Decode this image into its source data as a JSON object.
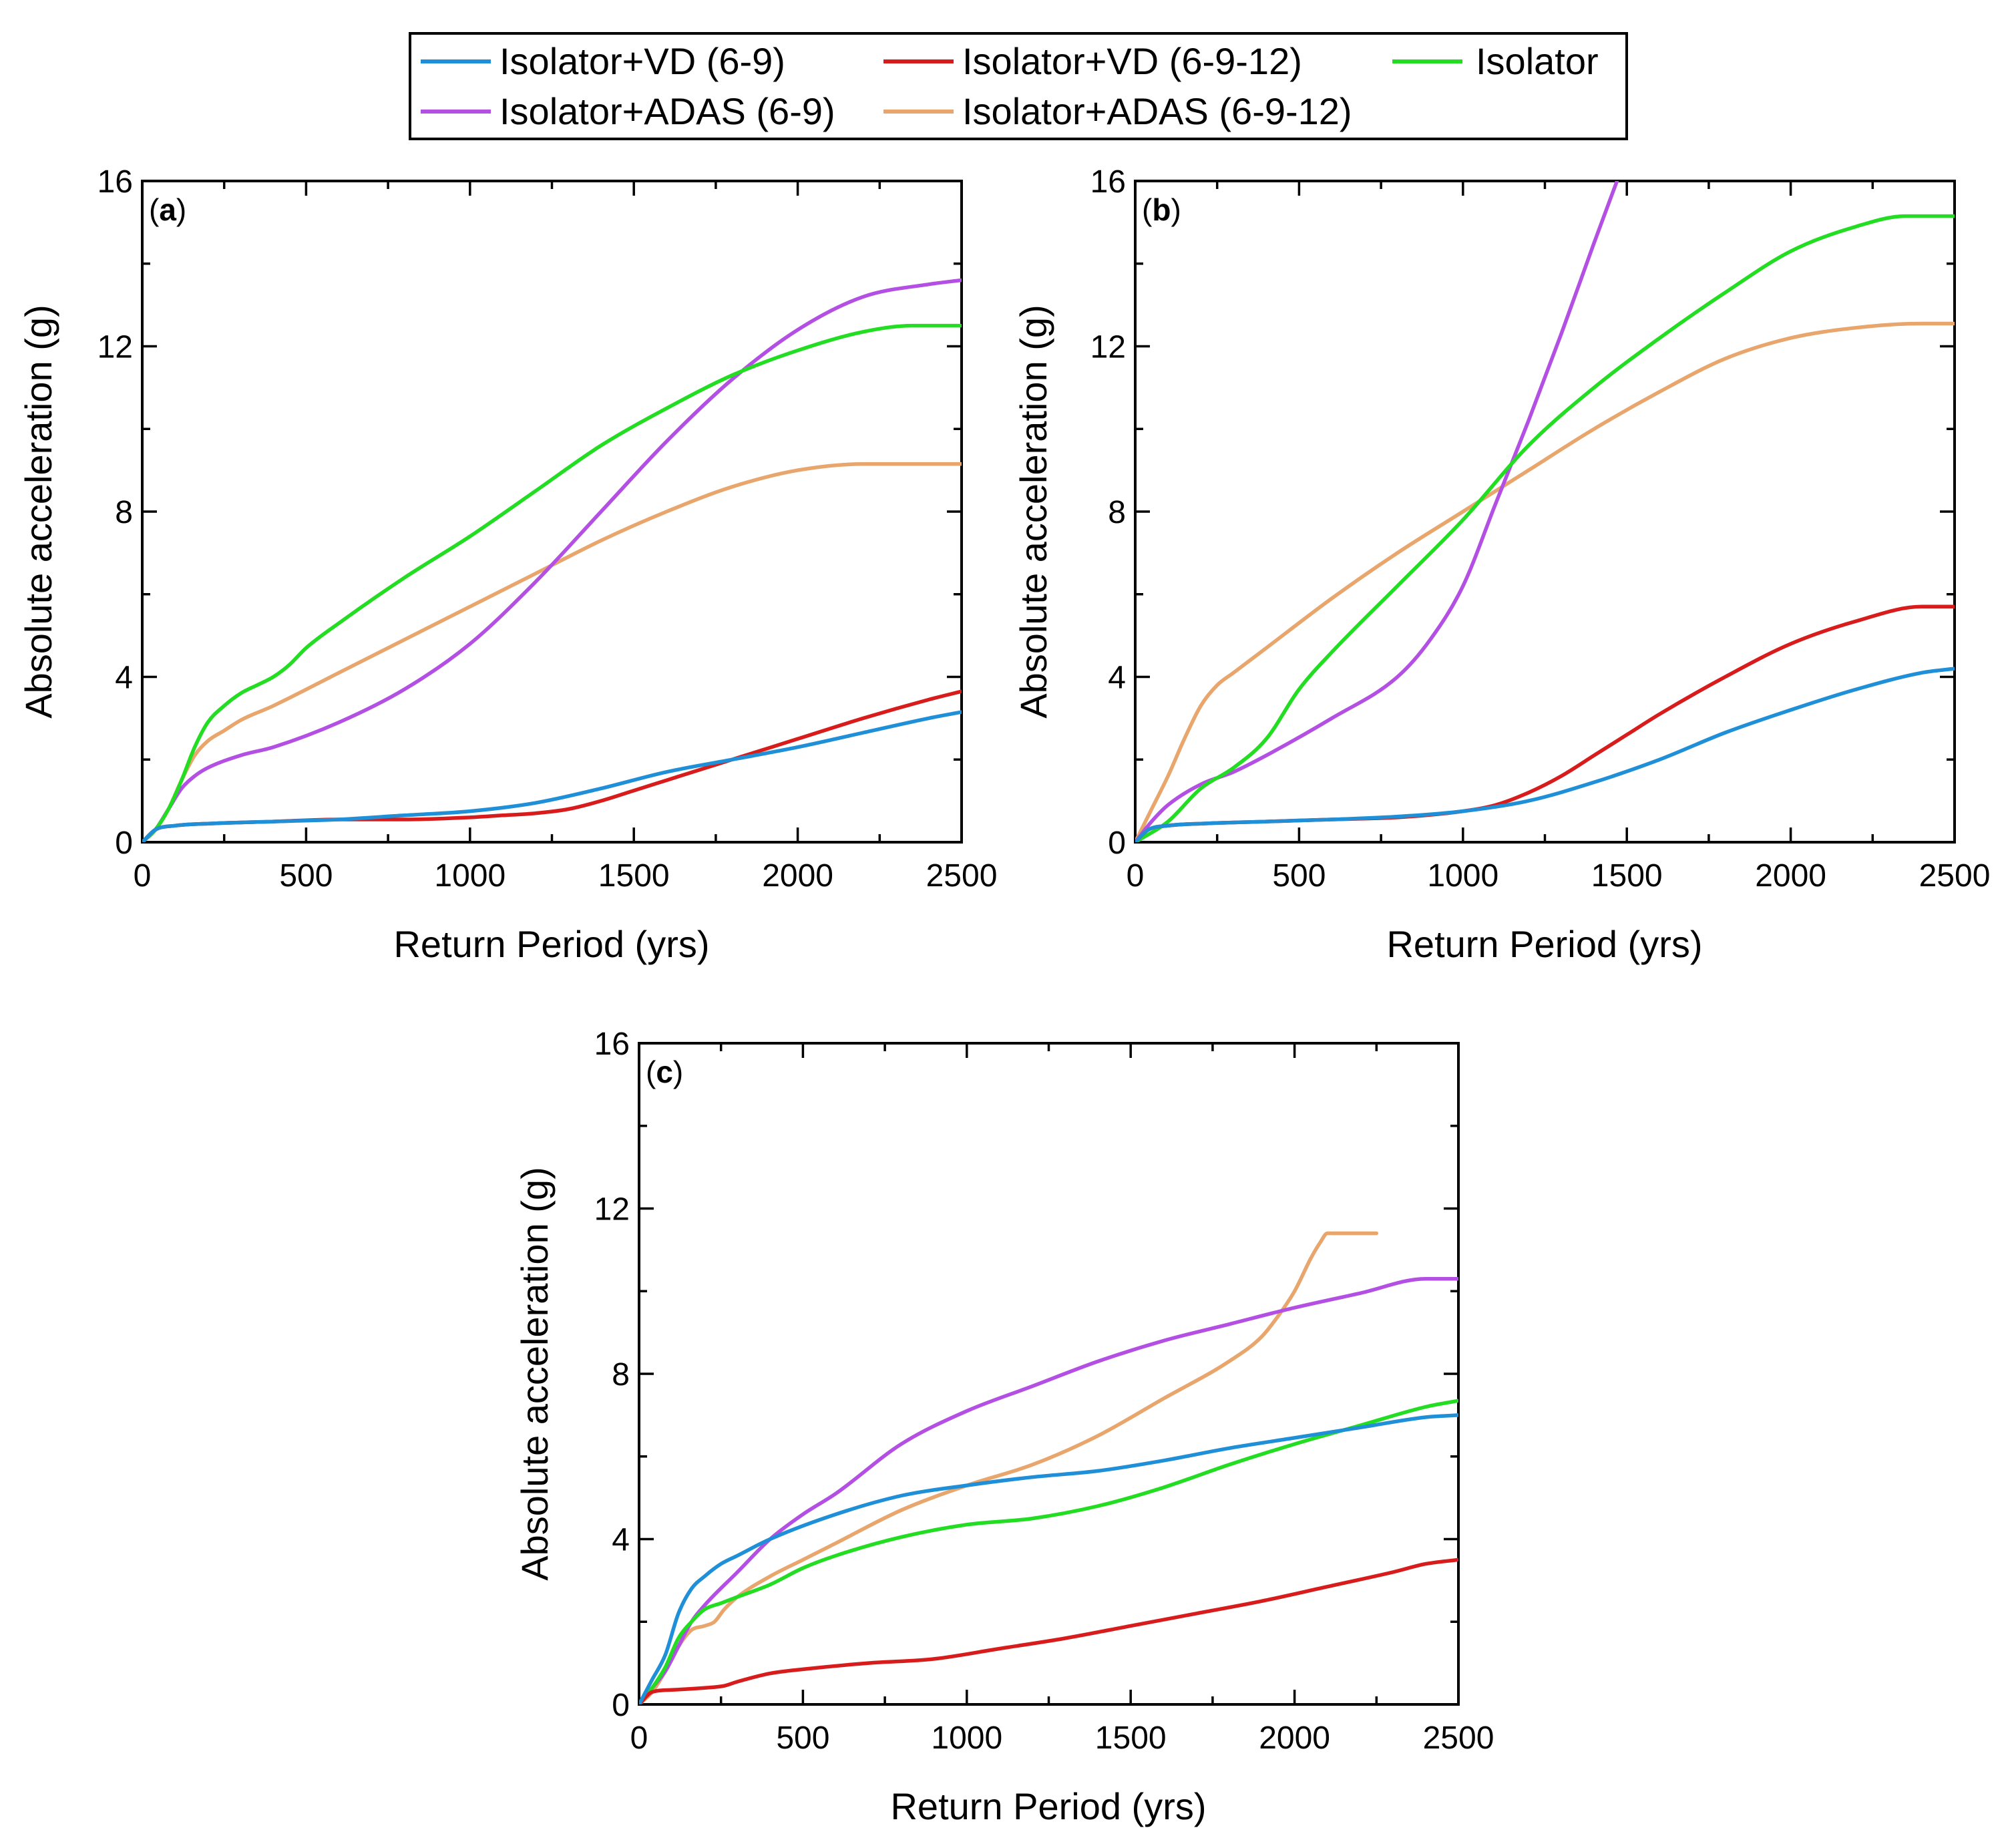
{
  "legend": {
    "entries": [
      {
        "key": "vd69",
        "label": "Isolator+VD (6-9)",
        "color": "#1f8fd8"
      },
      {
        "key": "vd6912",
        "label": "Isolator+VD (6-9-12)",
        "color": "#d81c1c"
      },
      {
        "key": "iso",
        "label": "Isolator",
        "color": "#22dd22"
      },
      {
        "key": "adas69",
        "label": "Isolator+ADAS (6-9)",
        "color": "#b34fe3"
      },
      {
        "key": "adas6912",
        "label": "Isolator+ADAS (6-9-12)",
        "color": "#e8a56c"
      }
    ]
  },
  "chart_data": [
    {
      "type": "line",
      "panel": "a",
      "panel_label": "a",
      "xlabel": "Return Period (yrs)",
      "ylabel": "Absolute acceleration (g)",
      "xlim": [
        0,
        2500
      ],
      "ylim": [
        0,
        16
      ],
      "xticks": [
        0,
        500,
        1000,
        1500,
        2000,
        2500
      ],
      "yticks": [
        0,
        4,
        8,
        12,
        16
      ],
      "series": [
        {
          "key": "vd69",
          "name": "Isolator+VD (6-9)",
          "x": [
            0,
            40,
            100,
            200,
            400,
            600,
            800,
            1000,
            1200,
            1400,
            1600,
            1800,
            2000,
            2200,
            2400,
            2500
          ],
          "y": [
            0,
            0.3,
            0.4,
            0.45,
            0.5,
            0.55,
            0.65,
            0.75,
            0.95,
            1.3,
            1.7,
            2.0,
            2.3,
            2.65,
            3.0,
            3.15
          ]
        },
        {
          "key": "vd6912",
          "name": "Isolator+VD (6-9-12)",
          "x": [
            0,
            40,
            100,
            200,
            400,
            600,
            800,
            1000,
            1100,
            1200,
            1300,
            1400,
            1500,
            1600,
            1800,
            2000,
            2200,
            2400,
            2500
          ],
          "y": [
            0,
            0.3,
            0.4,
            0.45,
            0.5,
            0.55,
            0.55,
            0.6,
            0.65,
            0.7,
            0.8,
            1.0,
            1.25,
            1.5,
            2.0,
            2.5,
            3.0,
            3.45,
            3.65
          ]
        },
        {
          "key": "iso",
          "name": "Isolator",
          "x": [
            0,
            40,
            80,
            120,
            160,
            200,
            250,
            300,
            350,
            400,
            450,
            500,
            600,
            800,
            1000,
            1200,
            1400,
            1600,
            1800,
            2000,
            2200,
            2350,
            2500
          ],
          "y": [
            0,
            0.3,
            0.8,
            1.5,
            2.3,
            2.9,
            3.3,
            3.6,
            3.8,
            4.0,
            4.3,
            4.7,
            5.3,
            6.4,
            7.4,
            8.5,
            9.6,
            10.5,
            11.3,
            11.9,
            12.35,
            12.5,
            12.5
          ]
        },
        {
          "key": "adas69",
          "name": "Isolator+ADAS (6-9)",
          "x": [
            0,
            40,
            80,
            120,
            160,
            200,
            300,
            400,
            600,
            800,
            1000,
            1200,
            1400,
            1600,
            1800,
            2000,
            2200,
            2400,
            2500
          ],
          "y": [
            0,
            0.3,
            0.8,
            1.3,
            1.6,
            1.8,
            2.1,
            2.3,
            2.9,
            3.7,
            4.8,
            6.3,
            8.0,
            9.7,
            11.2,
            12.4,
            13.2,
            13.5,
            13.6
          ]
        },
        {
          "key": "adas6912",
          "name": "Isolator+ADAS (6-9-12)",
          "x": [
            0,
            40,
            80,
            120,
            160,
            200,
            250,
            300,
            400,
            600,
            800,
            1000,
            1200,
            1400,
            1600,
            1800,
            2000,
            2200,
            2400,
            2500
          ],
          "y": [
            0,
            0.3,
            0.8,
            1.5,
            2.1,
            2.45,
            2.7,
            2.95,
            3.3,
            4.1,
            4.9,
            5.7,
            6.5,
            7.3,
            8.0,
            8.6,
            9.0,
            9.15,
            9.15,
            9.15
          ]
        }
      ]
    },
    {
      "type": "line",
      "panel": "b",
      "panel_label": "b",
      "xlabel": "Return Period (yrs)",
      "ylabel": "Absolute acceleration (g)",
      "xlim": [
        0,
        2500
      ],
      "ylim": [
        0,
        16
      ],
      "xticks": [
        0,
        500,
        1000,
        1500,
        2000,
        2500
      ],
      "yticks": [
        0,
        4,
        8,
        12,
        16
      ],
      "series": [
        {
          "key": "vd69",
          "name": "Isolator+VD (6-9)",
          "x": [
            0,
            40,
            100,
            200,
            400,
            600,
            800,
            1000,
            1200,
            1400,
            1600,
            1800,
            2000,
            2200,
            2400,
            2500
          ],
          "y": [
            0,
            0.3,
            0.4,
            0.45,
            0.5,
            0.55,
            0.62,
            0.75,
            1.0,
            1.45,
            2.0,
            2.65,
            3.2,
            3.7,
            4.1,
            4.2
          ]
        },
        {
          "key": "vd6912",
          "name": "Isolator+VD (6-9-12)",
          "x": [
            0,
            40,
            100,
            200,
            400,
            600,
            800,
            1000,
            1100,
            1200,
            1300,
            1400,
            1500,
            1600,
            1800,
            2000,
            2200,
            2400,
            2500
          ],
          "y": [
            0,
            0.3,
            0.4,
            0.45,
            0.5,
            0.55,
            0.6,
            0.75,
            0.9,
            1.2,
            1.6,
            2.1,
            2.6,
            3.1,
            4.0,
            4.8,
            5.35,
            5.7,
            5.7
          ]
        },
        {
          "key": "iso",
          "name": "Isolator",
          "x": [
            0,
            100,
            200,
            300,
            400,
            500,
            600,
            800,
            1000,
            1200,
            1400,
            1600,
            1800,
            2000,
            2200,
            2350,
            2500
          ],
          "y": [
            0,
            0.5,
            1.3,
            1.8,
            2.5,
            3.7,
            4.6,
            6.2,
            7.8,
            9.6,
            11.0,
            12.2,
            13.3,
            14.3,
            14.9,
            15.15,
            15.15
          ]
        },
        {
          "key": "adas69",
          "name": "Isolator+ADAS (6-9)",
          "x": [
            0,
            50,
            100,
            200,
            300,
            400,
            600,
            800,
            900,
            1000,
            1100,
            1200,
            1300,
            1400,
            1470
          ],
          "y": [
            0,
            0.5,
            0.9,
            1.4,
            1.7,
            2.1,
            3.0,
            4.0,
            4.9,
            6.2,
            8.2,
            10.2,
            12.3,
            14.5,
            16.0
          ]
        },
        {
          "key": "adas6912",
          "name": "Isolator+ADAS (6-9-12)",
          "x": [
            0,
            50,
            100,
            150,
            200,
            250,
            300,
            400,
            600,
            800,
            1000,
            1200,
            1400,
            1600,
            1800,
            2000,
            2200,
            2400,
            2500
          ],
          "y": [
            0,
            0.8,
            1.6,
            2.5,
            3.3,
            3.8,
            4.1,
            4.7,
            5.9,
            7.0,
            8.0,
            9.0,
            10.0,
            10.9,
            11.7,
            12.2,
            12.45,
            12.55,
            12.55
          ]
        }
      ]
    },
    {
      "type": "line",
      "panel": "c",
      "panel_label": "c",
      "xlabel": "Return Period (yrs)",
      "ylabel": "Absolute acceleration (g)",
      "xlim": [
        0,
        2500
      ],
      "ylim": [
        0,
        16
      ],
      "xticks": [
        0,
        500,
        1000,
        1500,
        2000,
        2500
      ],
      "yticks": [
        0,
        4,
        8,
        12,
        16
      ],
      "series": [
        {
          "key": "vd69",
          "name": "Isolator+VD (6-9)",
          "x": [
            0,
            40,
            80,
            120,
            160,
            200,
            250,
            300,
            400,
            600,
            800,
            1000,
            1200,
            1400,
            1600,
            1800,
            2000,
            2200,
            2400,
            2500
          ],
          "y": [
            0,
            0.6,
            1.2,
            2.2,
            2.8,
            3.1,
            3.4,
            3.6,
            4.0,
            4.6,
            5.05,
            5.3,
            5.5,
            5.65,
            5.9,
            6.2,
            6.45,
            6.7,
            6.95,
            7.0
          ]
        },
        {
          "key": "vd6912",
          "name": "Isolator+VD (6-9-12)",
          "x": [
            0,
            40,
            100,
            200,
            260,
            300,
            400,
            500,
            700,
            900,
            1100,
            1300,
            1500,
            1700,
            1900,
            2100,
            2300,
            2400,
            2500
          ],
          "y": [
            0,
            0.3,
            0.35,
            0.4,
            0.45,
            0.55,
            0.75,
            0.85,
            1.0,
            1.1,
            1.35,
            1.6,
            1.9,
            2.2,
            2.5,
            2.85,
            3.2,
            3.4,
            3.5
          ]
        },
        {
          "key": "iso",
          "name": "Isolator",
          "x": [
            0,
            40,
            80,
            120,
            160,
            200,
            250,
            300,
            400,
            500,
            600,
            800,
            1000,
            1200,
            1400,
            1600,
            1800,
            2000,
            2200,
            2400,
            2500
          ],
          "y": [
            0,
            0.4,
            0.9,
            1.6,
            2.0,
            2.3,
            2.45,
            2.6,
            2.9,
            3.3,
            3.6,
            4.05,
            4.35,
            4.5,
            4.8,
            5.25,
            5.8,
            6.3,
            6.75,
            7.2,
            7.35
          ]
        },
        {
          "key": "adas69",
          "name": "Isolator+ADAS (6-9)",
          "x": [
            0,
            40,
            80,
            120,
            160,
            200,
            300,
            400,
            500,
            600,
            800,
            1000,
            1200,
            1400,
            1600,
            1800,
            2000,
            2200,
            2400,
            2500
          ],
          "y": [
            0,
            0.4,
            0.8,
            1.4,
            2.0,
            2.4,
            3.2,
            4.0,
            4.6,
            5.1,
            6.3,
            7.1,
            7.7,
            8.3,
            8.8,
            9.2,
            9.6,
            9.95,
            10.3,
            10.3
          ]
        },
        {
          "key": "adas6912",
          "name": "Isolator+ADAS (6-9-12)",
          "x": [
            0,
            40,
            80,
            120,
            160,
            200,
            230,
            260,
            300,
            400,
            500,
            600,
            800,
            1000,
            1200,
            1400,
            1600,
            1800,
            1900,
            1950,
            2000,
            2050,
            2080,
            2100,
            2150,
            2250
          ],
          "y": [
            0,
            0.3,
            0.8,
            1.4,
            1.8,
            1.9,
            2.0,
            2.3,
            2.6,
            3.1,
            3.5,
            3.9,
            4.7,
            5.3,
            5.8,
            6.5,
            7.4,
            8.3,
            8.9,
            9.4,
            10.0,
            10.8,
            11.2,
            11.4,
            11.4,
            11.4
          ]
        }
      ]
    }
  ]
}
